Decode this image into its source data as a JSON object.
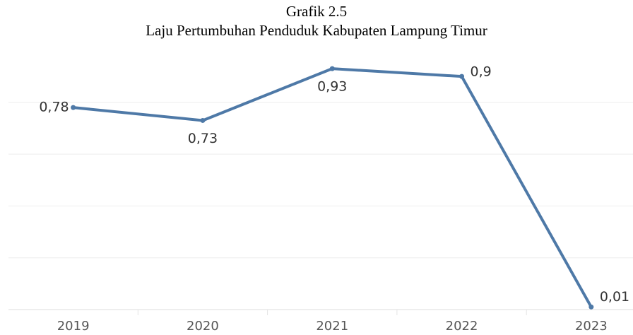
{
  "chart_data": {
    "type": "line",
    "title": [
      "Grafik 2.5",
      "Laju Pertumbuhan Penduduk Kabupaten Lampung Timur"
    ],
    "categories": [
      "2019",
      "2020",
      "2021",
      "2022",
      "2023"
    ],
    "series": [
      {
        "name": "Laju Pertumbuhan Penduduk",
        "color": "#4e79a7",
        "values": [
          0.78,
          0.73,
          0.93,
          0.9,
          0.01
        ],
        "value_labels": [
          "0,78",
          "0,73",
          "0,93",
          "0,9",
          "0,01"
        ]
      }
    ],
    "ylim": [
      0,
      0.955
    ],
    "yticks": [
      0,
      0.2,
      0.4,
      0.6,
      0.8
    ],
    "grid": true
  }
}
